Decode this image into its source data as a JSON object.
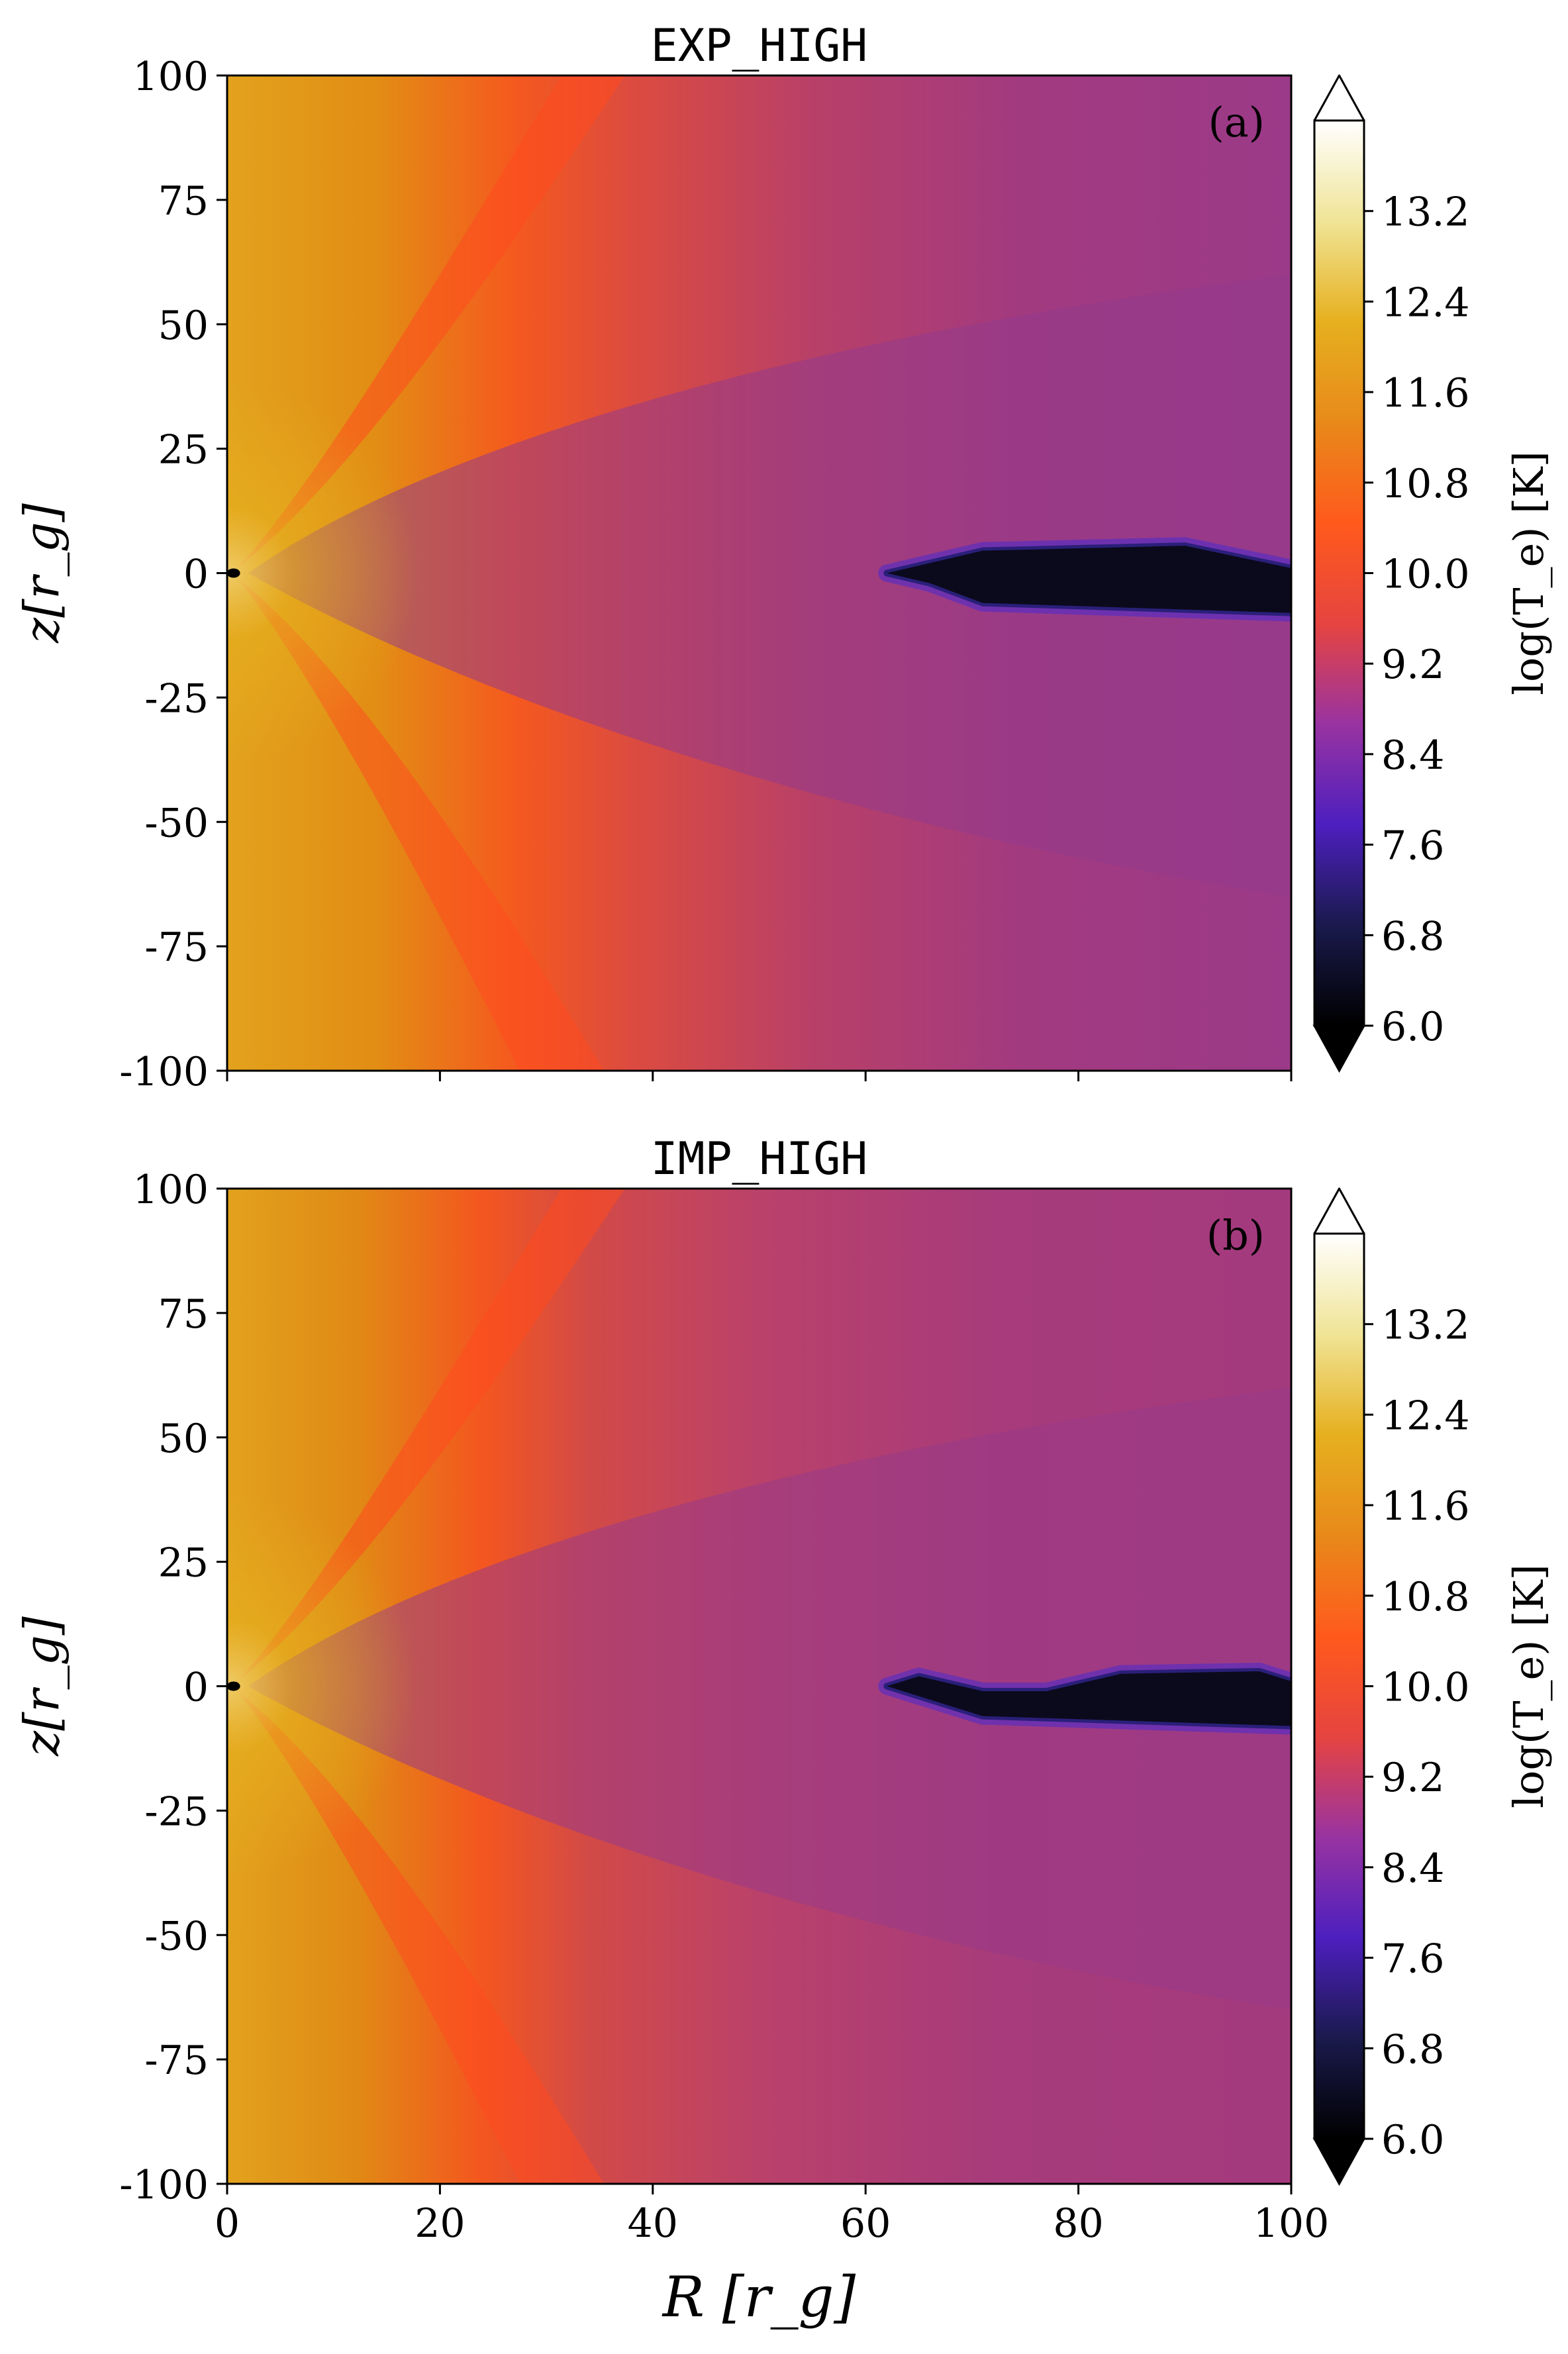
{
  "chart_data": [
    {
      "type": "heatmap",
      "title": "EXP_HIGH",
      "panel_label": "(a)",
      "xlabel": "",
      "ylabel": "z[r_g]",
      "xlim": [
        0,
        100
      ],
      "ylim": [
        -100,
        100
      ],
      "x_ticks": [
        0,
        20,
        40,
        60,
        80,
        100
      ],
      "x_tick_labels": [],
      "y_ticks": [
        100,
        75,
        50,
        25,
        0,
        -25,
        -50,
        -75,
        -100
      ],
      "y_tick_labels": [
        "100",
        "75",
        "50",
        "25",
        "0",
        "-25",
        "-50",
        "-75",
        "-100"
      ],
      "colorbar": {
        "label": "log(T_e) [K]",
        "range": [
          6.0,
          14.0
        ],
        "ticks": [
          13.2,
          12.4,
          11.6,
          10.8,
          10.0,
          9.2,
          8.4,
          7.6,
          6.8,
          6.0
        ],
        "tick_labels": [
          "13.2",
          "12.4",
          "11.6",
          "10.8",
          "10.0",
          "9.2",
          "8.4",
          "7.6",
          "6.8",
          "6.0"
        ],
        "extend": "both",
        "colormap": "CMRmap",
        "colors": [
          "#000000",
          "#1a1a4d",
          "#4d1fbf",
          "#9933a1",
          "#e64440",
          "#ff5a1c",
          "#e8891a",
          "#e6b01f",
          "#f0e496",
          "#ffffff"
        ]
      },
      "cold_disk_region": {
        "value": 6.0,
        "upper": [
          [
            62,
            0
          ],
          [
            66,
            2
          ],
          [
            71,
            4.5
          ],
          [
            90,
            5.5
          ],
          [
            100,
            1
          ]
        ],
        "lower": [
          [
            100,
            -8
          ],
          [
            71,
            -6
          ],
          [
            66,
            -2
          ],
          [
            62,
            0
          ]
        ]
      }
    },
    {
      "type": "heatmap",
      "title": "IMP_HIGH",
      "panel_label": "(b)",
      "xlabel": "R [r_g]",
      "ylabel": "z[r_g]",
      "xlim": [
        0,
        100
      ],
      "ylim": [
        -100,
        100
      ],
      "x_ticks": [
        0,
        20,
        40,
        60,
        80,
        100
      ],
      "x_tick_labels": [
        "0",
        "20",
        "40",
        "60",
        "80",
        "100"
      ],
      "y_ticks": [
        100,
        75,
        50,
        25,
        0,
        -25,
        -50,
        -75,
        -100
      ],
      "y_tick_labels": [
        "100",
        "75",
        "50",
        "25",
        "0",
        "-25",
        "-50",
        "-75",
        "-100"
      ],
      "colorbar": {
        "label": "log(T_e) [K]",
        "range": [
          6.0,
          14.0
        ],
        "ticks": [
          13.2,
          12.4,
          11.6,
          10.8,
          10.0,
          9.2,
          8.4,
          7.6,
          6.8,
          6.0
        ],
        "tick_labels": [
          "13.2",
          "12.4",
          "11.6",
          "10.8",
          "10.0",
          "9.2",
          "8.4",
          "7.6",
          "6.8",
          "6.0"
        ],
        "extend": "both",
        "colormap": "CMRmap",
        "colors": [
          "#000000",
          "#1a1a4d",
          "#4d1fbf",
          "#9933a1",
          "#e64440",
          "#ff5a1c",
          "#e8891a",
          "#e6b01f",
          "#f0e496",
          "#ffffff"
        ]
      },
      "cold_disk_region": {
        "value": 6.0,
        "upper": [
          [
            62,
            0
          ],
          [
            65,
            2
          ],
          [
            71,
            -1
          ],
          [
            77,
            -1
          ],
          [
            84,
            2.5
          ],
          [
            97,
            3
          ],
          [
            100,
            1
          ]
        ],
        "lower": [
          [
            100,
            -8
          ],
          [
            71,
            -6
          ],
          [
            65,
            -2
          ],
          [
            62,
            0
          ]
        ]
      }
    }
  ]
}
